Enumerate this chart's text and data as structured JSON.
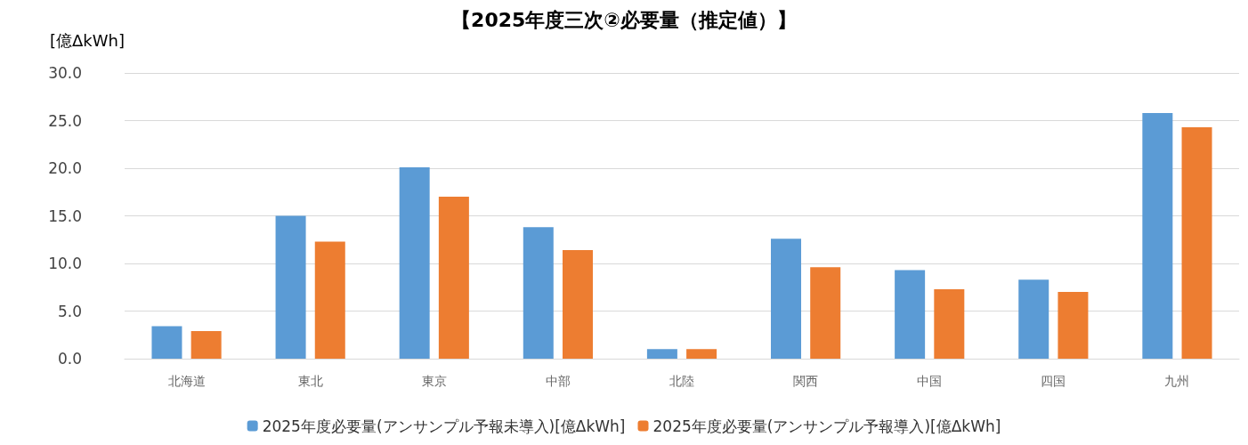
{
  "chart_data": {
    "type": "bar",
    "title": "【2025年度三次②必要量（推定値）】",
    "ylabel": "[億ΔkWh]",
    "categories": [
      "北海道",
      "東北",
      "東京",
      "中部",
      "北陸",
      "関西",
      "中国",
      "四国",
      "九州"
    ],
    "series": [
      {
        "name": "2025年度必要量(アンサンプル予報未導入)[億ΔkWh]",
        "color": "#5b9bd5",
        "values": [
          3.4,
          15.0,
          20.1,
          13.8,
          1.0,
          12.6,
          9.3,
          8.3,
          25.8
        ]
      },
      {
        "name": "2025年度必要量(アンサンプル予報導入)[億ΔkWh]",
        "color": "#ed7d31",
        "values": [
          2.9,
          12.3,
          17.0,
          11.4,
          1.0,
          9.6,
          7.3,
          7.0,
          24.3
        ]
      }
    ],
    "ylim": [
      0,
      30
    ],
    "yticks": [
      {
        "value": 0,
        "label": "0.0"
      },
      {
        "value": 5,
        "label": "5.0"
      },
      {
        "value": 10,
        "label": "10.0"
      },
      {
        "value": 15,
        "label": "15.0"
      },
      {
        "value": 20,
        "label": "20.0"
      },
      {
        "value": 25,
        "label": "25.0"
      },
      {
        "value": 30,
        "label": "30.0"
      }
    ],
    "grid": "y",
    "legend": "bottom"
  }
}
